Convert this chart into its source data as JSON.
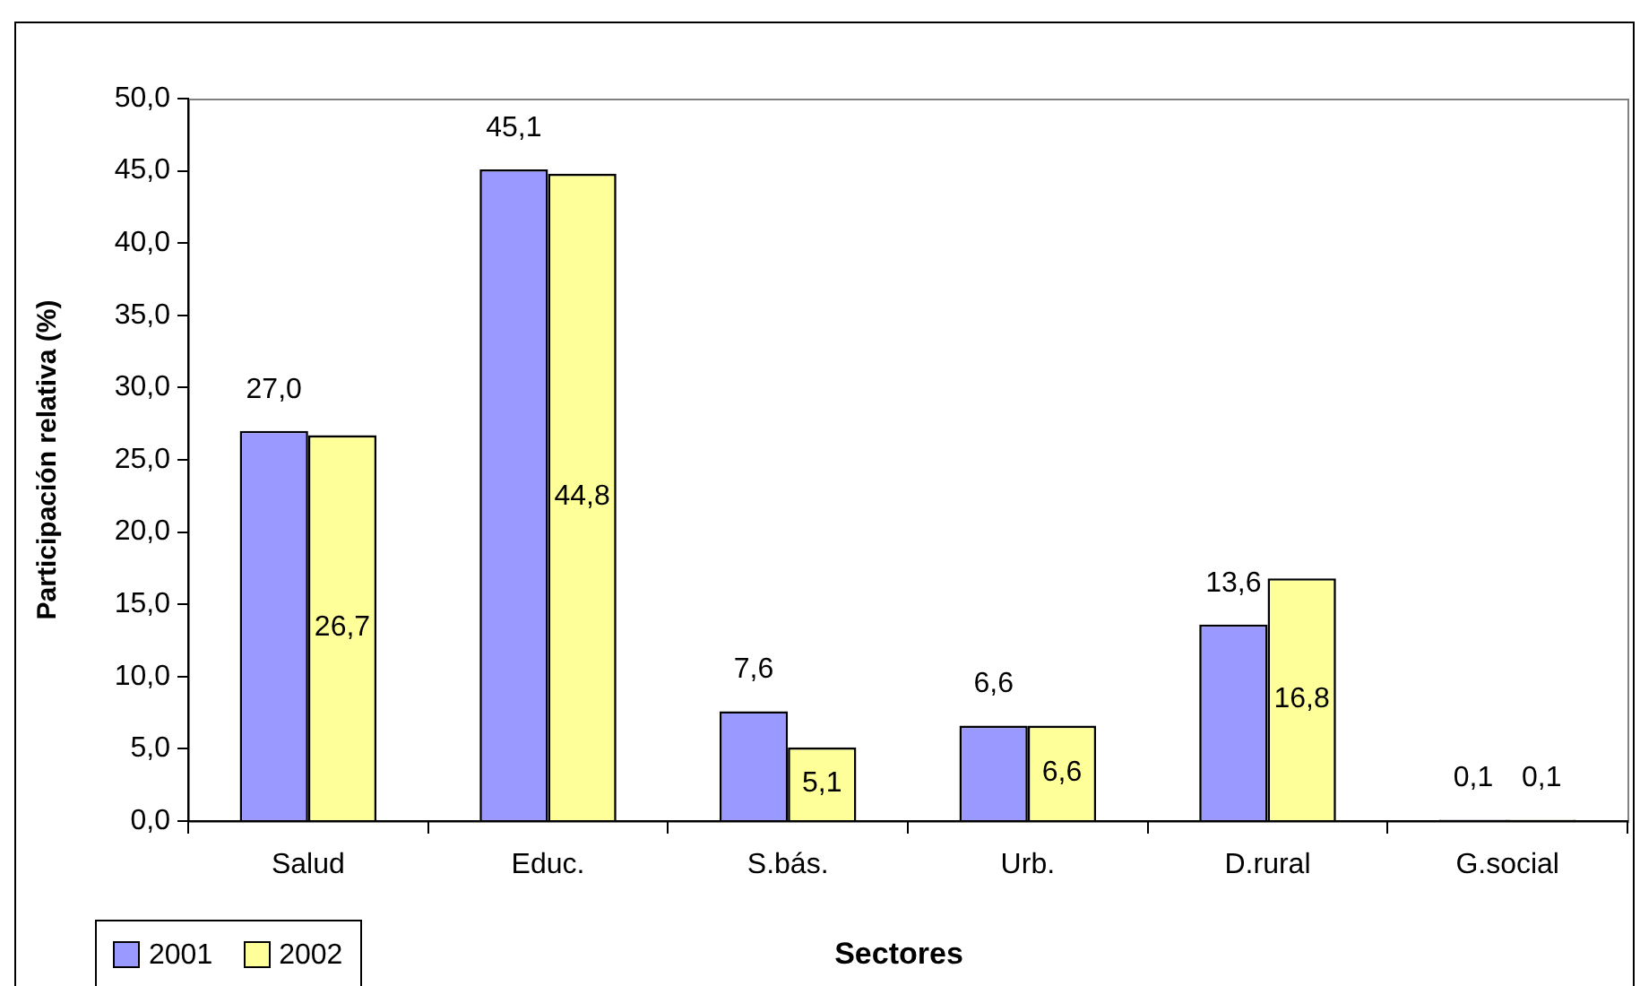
{
  "chart_data": {
    "type": "bar",
    "ylabel": "Participación relativa (%)",
    "xlabel": "Sectores",
    "categories": [
      "Salud",
      "Educ.",
      "S.bás.",
      "Urb.",
      "D.rural",
      "G.social"
    ],
    "series": [
      {
        "name": "2001",
        "color": "#9999ff",
        "values": [
          27.0,
          45.1,
          7.6,
          6.6,
          13.6,
          0.1
        ],
        "value_labels": [
          "27,0",
          "45,1",
          "7,6",
          "6,6",
          "13,6",
          "0,1"
        ]
      },
      {
        "name": "2002",
        "color": "#ffff99",
        "values": [
          26.7,
          44.8,
          5.1,
          6.6,
          16.8,
          0.1
        ],
        "value_labels": [
          "26,7",
          "44,8",
          "5,1",
          "6,6",
          "16,8",
          "0,1"
        ]
      }
    ],
    "ylim": [
      0,
      50
    ],
    "yticks": [
      {
        "value": 0,
        "label": "0,0"
      },
      {
        "value": 5,
        "label": "5,0"
      },
      {
        "value": 10,
        "label": "10,0"
      },
      {
        "value": 15,
        "label": "15,0"
      },
      {
        "value": 20,
        "label": "20,0"
      },
      {
        "value": 25,
        "label": "25,0"
      },
      {
        "value": 30,
        "label": "30,0"
      },
      {
        "value": 35,
        "label": "35,0"
      },
      {
        "value": 40,
        "label": "40,0"
      },
      {
        "value": 45,
        "label": "45,0"
      },
      {
        "value": 50,
        "label": "50,0"
      }
    ],
    "grid": false,
    "legend": "bottom left"
  }
}
